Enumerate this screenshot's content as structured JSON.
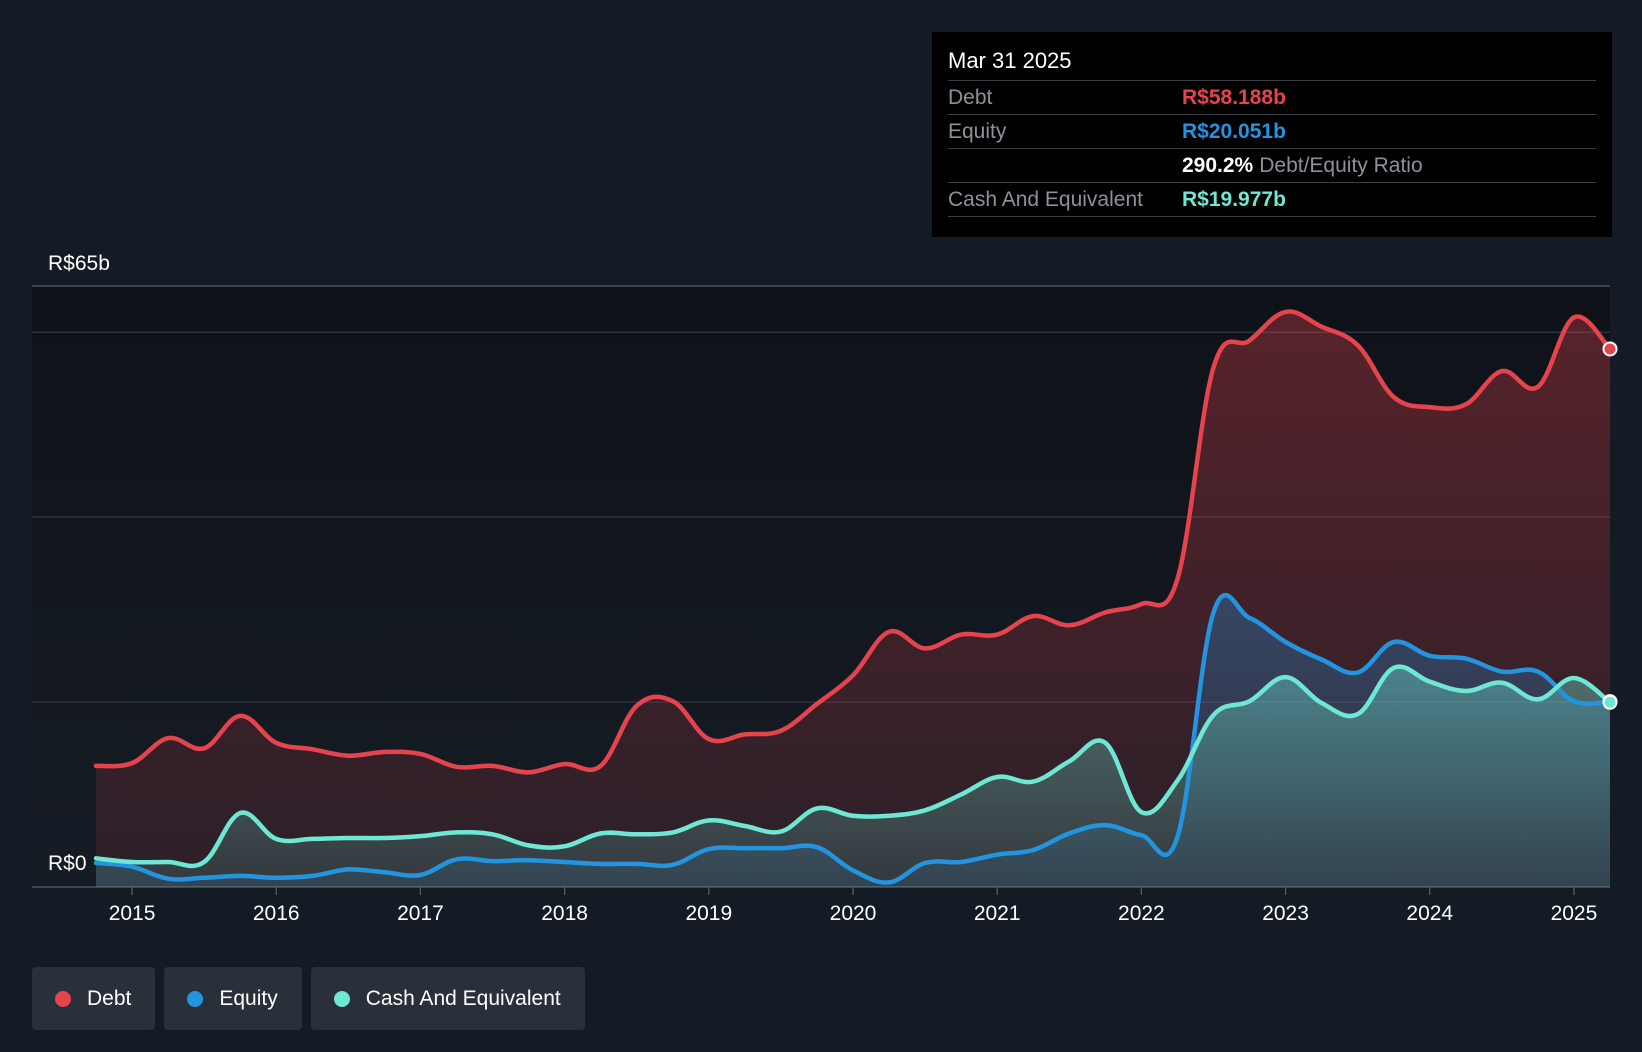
{
  "tooltip": {
    "date": "Mar 31 2025",
    "rows": [
      {
        "label": "Debt",
        "value": "R$58.188b",
        "color": "#e5444d"
      },
      {
        "label": "Equity",
        "value": "R$20.051b",
        "color": "#2394df"
      },
      {
        "ratio_value": "290.2%",
        "ratio_label": "Debt/Equity Ratio"
      },
      {
        "label": "Cash And Equivalent",
        "value": "R$19.977b",
        "color": "#6ee7d4"
      }
    ]
  },
  "legend": [
    {
      "label": "Debt",
      "color": "#e5444d"
    },
    {
      "label": "Equity",
      "color": "#2394df"
    },
    {
      "label": "Cash And Equivalent",
      "color": "#6ee7d4"
    }
  ],
  "chart_data": {
    "type": "area",
    "y_unit_labels": {
      "top": "R$65b",
      "bottom": "R$0"
    },
    "ylim": [
      0,
      65
    ],
    "xlim": [
      2014.75,
      2025.25
    ],
    "x_ticks": [
      "2015",
      "2016",
      "2017",
      "2018",
      "2019",
      "2020",
      "2021",
      "2022",
      "2023",
      "2024",
      "2025"
    ],
    "grid_values": [
      20,
      40,
      60
    ],
    "series": [
      {
        "name": "Debt",
        "color": "#e5444d",
        "points": [
          [
            2014.75,
            13.1
          ],
          [
            2015.0,
            13.4
          ],
          [
            2015.25,
            16.1
          ],
          [
            2015.5,
            15.0
          ],
          [
            2015.75,
            18.5
          ],
          [
            2016.0,
            15.6
          ],
          [
            2016.25,
            14.9
          ],
          [
            2016.5,
            14.2
          ],
          [
            2016.75,
            14.6
          ],
          [
            2017.0,
            14.4
          ],
          [
            2017.25,
            13.0
          ],
          [
            2017.5,
            13.1
          ],
          [
            2017.75,
            12.4
          ],
          [
            2018.0,
            13.3
          ],
          [
            2018.25,
            13.1
          ],
          [
            2018.5,
            19.6
          ],
          [
            2018.75,
            20.1
          ],
          [
            2019.0,
            16.0
          ],
          [
            2019.25,
            16.5
          ],
          [
            2019.5,
            16.9
          ],
          [
            2019.75,
            19.8
          ],
          [
            2020.0,
            22.9
          ],
          [
            2020.25,
            27.6
          ],
          [
            2020.5,
            25.8
          ],
          [
            2020.75,
            27.3
          ],
          [
            2021.0,
            27.3
          ],
          [
            2021.25,
            29.3
          ],
          [
            2021.5,
            28.3
          ],
          [
            2021.75,
            29.7
          ],
          [
            2022.0,
            30.6
          ],
          [
            2022.25,
            33.3
          ],
          [
            2022.5,
            56.2
          ],
          [
            2022.75,
            59.1
          ],
          [
            2023.0,
            62.2
          ],
          [
            2023.25,
            60.6
          ],
          [
            2023.5,
            58.6
          ],
          [
            2023.75,
            53.0
          ],
          [
            2024.0,
            51.9
          ],
          [
            2024.25,
            52.2
          ],
          [
            2024.5,
            55.8
          ],
          [
            2024.75,
            54.1
          ],
          [
            2025.0,
            61.6
          ],
          [
            2025.25,
            58.188
          ]
        ]
      },
      {
        "name": "Equity",
        "color": "#2394df",
        "points": [
          [
            2014.75,
            2.6
          ],
          [
            2015.0,
            2.2
          ],
          [
            2015.25,
            0.9
          ],
          [
            2015.5,
            1.0
          ],
          [
            2015.75,
            1.2
          ],
          [
            2016.0,
            1.0
          ],
          [
            2016.25,
            1.2
          ],
          [
            2016.5,
            1.9
          ],
          [
            2016.75,
            1.6
          ],
          [
            2017.0,
            1.3
          ],
          [
            2017.25,
            3.0
          ],
          [
            2017.5,
            2.8
          ],
          [
            2017.75,
            2.9
          ],
          [
            2018.0,
            2.7
          ],
          [
            2018.25,
            2.5
          ],
          [
            2018.5,
            2.5
          ],
          [
            2018.75,
            2.4
          ],
          [
            2019.0,
            4.1
          ],
          [
            2019.25,
            4.2
          ],
          [
            2019.5,
            4.2
          ],
          [
            2019.75,
            4.3
          ],
          [
            2020.0,
            1.8
          ],
          [
            2020.25,
            0.5
          ],
          [
            2020.5,
            2.6
          ],
          [
            2020.75,
            2.7
          ],
          [
            2021.0,
            3.5
          ],
          [
            2021.25,
            4.0
          ],
          [
            2021.5,
            5.8
          ],
          [
            2021.75,
            6.7
          ],
          [
            2022.0,
            5.6
          ],
          [
            2022.25,
            5.4
          ],
          [
            2022.5,
            29.7
          ],
          [
            2022.75,
            29.1
          ],
          [
            2023.0,
            26.5
          ],
          [
            2023.25,
            24.6
          ],
          [
            2023.5,
            23.2
          ],
          [
            2023.75,
            26.5
          ],
          [
            2024.0,
            25.0
          ],
          [
            2024.25,
            24.7
          ],
          [
            2024.5,
            23.3
          ],
          [
            2024.75,
            23.3
          ],
          [
            2025.0,
            20.1
          ],
          [
            2025.25,
            20.051
          ]
        ]
      },
      {
        "name": "Cash And Equivalent",
        "color": "#6ee7d4",
        "points": [
          [
            2014.75,
            3.1
          ],
          [
            2015.0,
            2.7
          ],
          [
            2015.25,
            2.7
          ],
          [
            2015.5,
            2.7
          ],
          [
            2015.75,
            8.0
          ],
          [
            2016.0,
            5.2
          ],
          [
            2016.25,
            5.2
          ],
          [
            2016.5,
            5.3
          ],
          [
            2016.75,
            5.3
          ],
          [
            2017.0,
            5.5
          ],
          [
            2017.25,
            5.9
          ],
          [
            2017.5,
            5.7
          ],
          [
            2017.75,
            4.5
          ],
          [
            2018.0,
            4.4
          ],
          [
            2018.25,
            5.8
          ],
          [
            2018.5,
            5.7
          ],
          [
            2018.75,
            5.9
          ],
          [
            2019.0,
            7.2
          ],
          [
            2019.25,
            6.6
          ],
          [
            2019.5,
            6.0
          ],
          [
            2019.75,
            8.5
          ],
          [
            2020.0,
            7.7
          ],
          [
            2020.25,
            7.7
          ],
          [
            2020.5,
            8.3
          ],
          [
            2020.75,
            10.0
          ],
          [
            2021.0,
            11.9
          ],
          [
            2021.25,
            11.4
          ],
          [
            2021.5,
            13.6
          ],
          [
            2021.75,
            15.6
          ],
          [
            2022.0,
            8.1
          ],
          [
            2022.25,
            11.5
          ],
          [
            2022.5,
            18.6
          ],
          [
            2022.75,
            20.1
          ],
          [
            2023.0,
            22.7
          ],
          [
            2023.25,
            19.9
          ],
          [
            2023.5,
            18.7
          ],
          [
            2023.75,
            23.7
          ],
          [
            2024.0,
            22.2
          ],
          [
            2024.25,
            21.2
          ],
          [
            2024.5,
            22.1
          ],
          [
            2024.75,
            20.3
          ],
          [
            2025.0,
            22.6
          ],
          [
            2025.25,
            19.977
          ]
        ]
      }
    ]
  }
}
